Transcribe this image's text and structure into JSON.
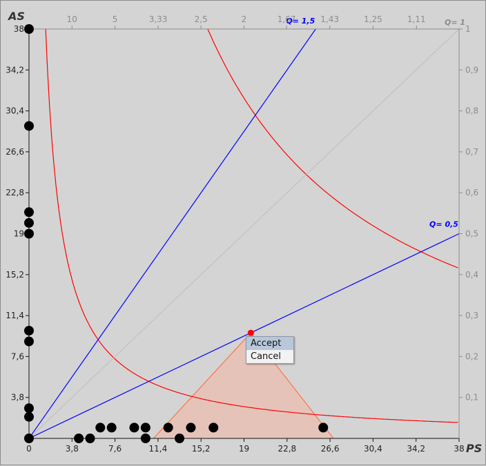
{
  "chart_data": {
    "type": "scatter",
    "xlabel": "PS",
    "ylabel": "AS",
    "xlim": [
      0,
      38
    ],
    "ylim": [
      0,
      38
    ],
    "x_ticks": [
      "0",
      "3,8",
      "7,6",
      "11,4",
      "15,2",
      "19",
      "22,8",
      "26,6",
      "30,4",
      "34,2",
      "38"
    ],
    "y_ticks": [
      "0",
      "3,8",
      "7,6",
      "11,4",
      "15,2",
      "19",
      "22,8",
      "26,6",
      "30,4",
      "34,2",
      "38"
    ],
    "top_ticks": [
      "10",
      "5",
      "3,33",
      "2,5",
      "2",
      "1,67",
      "1,43",
      "1,25",
      "1,11"
    ],
    "top_end_label": "Q= 1",
    "right_ticks": [
      "1",
      "0,9",
      "0,8",
      "0,7",
      "0,6",
      "0,5",
      "0,4",
      "0,3",
      "0,2",
      "0,1"
    ],
    "lines": [
      {
        "label": "Q= 1,5",
        "slope": 1.5,
        "color": "#0000ff"
      },
      {
        "label": "Q= 0,5",
        "slope": 0.5,
        "color": "#0000ff"
      },
      {
        "label": "",
        "slope": 1.0,
        "color": "#b8b8b8"
      }
    ],
    "points_left_axis": [
      38,
      29,
      21,
      20,
      19,
      10,
      9,
      2.8,
      2
    ],
    "points_bottom": [
      {
        "x": 0,
        "y": 0
      },
      {
        "x": 4.4,
        "y": 0
      },
      {
        "x": 5.4,
        "y": 0
      },
      {
        "x": 6.3,
        "y": 1
      },
      {
        "x": 7.3,
        "y": 1
      },
      {
        "x": 9.3,
        "y": 1
      },
      {
        "x": 10.3,
        "y": 1
      },
      {
        "x": 10.3,
        "y": 0
      },
      {
        "x": 12.3,
        "y": 1
      },
      {
        "x": 13.3,
        "y": 0
      },
      {
        "x": 14.3,
        "y": 1
      },
      {
        "x": 16.3,
        "y": 1
      },
      {
        "x": 26.0,
        "y": 1
      }
    ],
    "selected_point": {
      "x": 19.6,
      "y": 9.8
    },
    "triangle": [
      [
        11,
        0
      ],
      [
        19.6,
        9.8
      ],
      [
        26.9,
        0
      ]
    ],
    "colors": {
      "point": "#000000",
      "selected": "#ff0000",
      "curve": "#ff0000",
      "line": "#0000ff",
      "triangle_fill": "#ecbcae",
      "triangle_stroke": "#ff6633"
    }
  },
  "menu": {
    "accept": "Accept",
    "cancel": "Cancel"
  }
}
